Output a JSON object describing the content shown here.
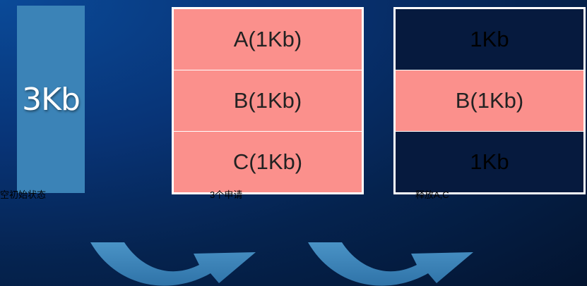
{
  "initial": {
    "block_label": "3Kb",
    "caption": "空初始状态"
  },
  "allocation": {
    "caption": "3个申请",
    "blocks": [
      {
        "label": "A(1Kb)",
        "state": "used"
      },
      {
        "label": "B(1Kb)",
        "state": "used"
      },
      {
        "label": "C(1Kb)",
        "state": "used"
      }
    ]
  },
  "release": {
    "caption": "释放A,C",
    "blocks": [
      {
        "label": "1Kb",
        "state": "free"
      },
      {
        "label": "B(1Kb)",
        "state": "used"
      },
      {
        "label": "1Kb",
        "state": "free"
      }
    ]
  },
  "colors": {
    "used": "#fb908c",
    "free": "#061a3e",
    "initial": "#3b83b7",
    "arrow": "#3d87bd"
  },
  "icons": [
    "curved-arrow-icon",
    "curved-arrow-icon"
  ]
}
